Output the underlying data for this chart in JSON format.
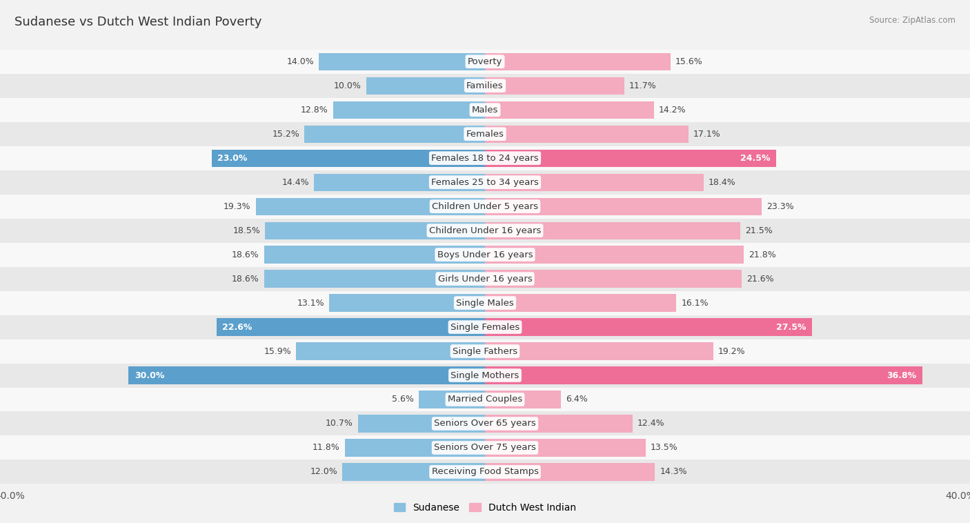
{
  "title": "Sudanese vs Dutch West Indian Poverty",
  "source": "Source: ZipAtlas.com",
  "categories": [
    "Poverty",
    "Families",
    "Males",
    "Females",
    "Females 18 to 24 years",
    "Females 25 to 34 years",
    "Children Under 5 years",
    "Children Under 16 years",
    "Boys Under 16 years",
    "Girls Under 16 years",
    "Single Males",
    "Single Females",
    "Single Fathers",
    "Single Mothers",
    "Married Couples",
    "Seniors Over 65 years",
    "Seniors Over 75 years",
    "Receiving Food Stamps"
  ],
  "sudanese": [
    14.0,
    10.0,
    12.8,
    15.2,
    23.0,
    14.4,
    19.3,
    18.5,
    18.6,
    18.6,
    13.1,
    22.6,
    15.9,
    30.0,
    5.6,
    10.7,
    11.8,
    12.0
  ],
  "dutch_west_indian": [
    15.6,
    11.7,
    14.2,
    17.1,
    24.5,
    18.4,
    23.3,
    21.5,
    21.8,
    21.6,
    16.1,
    27.5,
    19.2,
    36.8,
    6.4,
    12.4,
    13.5,
    14.3
  ],
  "sudanese_color": "#89BFDF",
  "dutch_west_indian_color": "#F4AABF",
  "sudanese_highlight_color": "#5B9FCC",
  "dutch_west_indian_highlight_color": "#EE6E97",
  "highlight_rows": [
    4,
    11,
    13
  ],
  "background_color": "#f2f2f2",
  "row_bg_light": "#f8f8f8",
  "row_bg_dark": "#e8e8e8",
  "axis_limit": 40.0,
  "bar_height": 0.72,
  "label_fontsize": 9.5,
  "title_fontsize": 13,
  "value_fontsize": 9,
  "legend_label_sudanese": "Sudanese",
  "legend_label_dutch": "Dutch West Indian"
}
